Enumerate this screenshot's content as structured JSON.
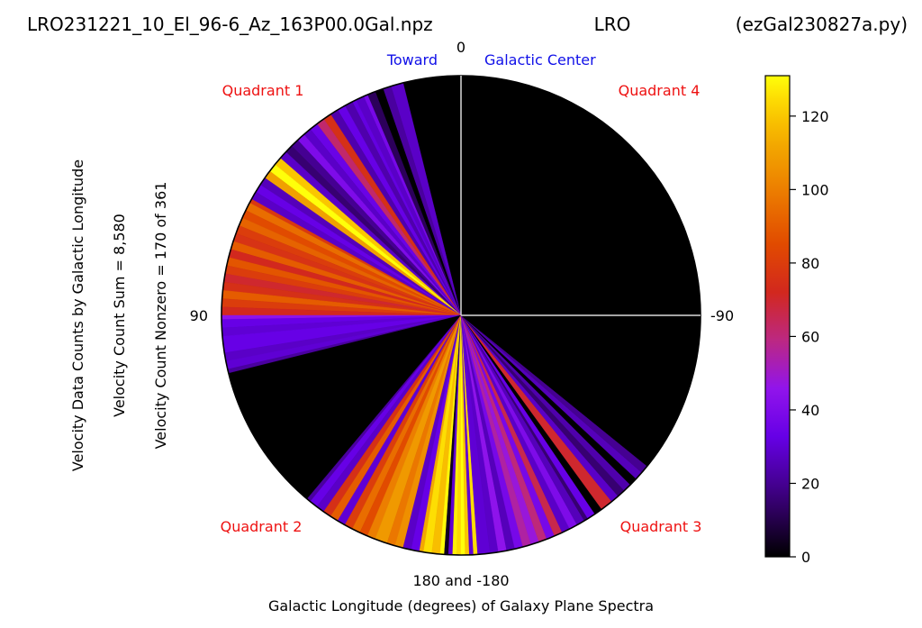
{
  "chart_data": {
    "type": "polar-wedge",
    "header_left": "LRO231221_10_El_96-6_Az_163P00.0Gal.npz",
    "header_center": "LRO",
    "header_right": "(ezGal230827a.py)",
    "toward_label": "Toward",
    "galactic_center_label": "Galactic Center",
    "top_tick": "0",
    "left_tick": "90",
    "right_tick": "-90",
    "bottom_tick": "180 and -180",
    "xlabel": "Galactic Longitude (degrees) of Galaxy Plane Spectra",
    "ylabel_lines": [
      "Velocity Data Counts by Galactic Longitude",
      "Velocity Count Sum = 8,580",
      "Velocity Count Nonzero = 170 of 361"
    ],
    "quadrant_labels": [
      "Quadrant 1",
      "Quadrant 4",
      "Quadrant 2",
      "Quadrant 3"
    ],
    "colorbar": {
      "min": 0,
      "max": 131,
      "ticks": [
        0,
        20,
        40,
        60,
        80,
        100,
        120
      ],
      "colormap": "gnuplot"
    },
    "wedges": [
      {
        "start": 3,
        "end": 14,
        "value": 0
      },
      {
        "start": 14,
        "end": 17,
        "value": 28
      },
      {
        "start": 17,
        "end": 19,
        "value": 22
      },
      {
        "start": 19,
        "end": 21,
        "value": 0
      },
      {
        "start": 21,
        "end": 23,
        "value": 12
      },
      {
        "start": 23,
        "end": 24,
        "value": 38
      },
      {
        "start": 24,
        "end": 26,
        "value": 28
      },
      {
        "start": 26,
        "end": 27,
        "value": 32
      },
      {
        "start": 27,
        "end": 29,
        "value": 24
      },
      {
        "start": 29,
        "end": 31,
        "value": 33
      },
      {
        "start": 31,
        "end": 33,
        "value": 24
      },
      {
        "start": 33,
        "end": 35,
        "value": 75
      },
      {
        "start": 35,
        "end": 37,
        "value": 62
      },
      {
        "start": 37,
        "end": 39,
        "value": 34
      },
      {
        "start": 39,
        "end": 41,
        "value": 28
      },
      {
        "start": 41,
        "end": 43,
        "value": 40
      },
      {
        "start": 43,
        "end": 45,
        "value": 20
      },
      {
        "start": 45,
        "end": 47,
        "value": 15
      },
      {
        "start": 47,
        "end": 49,
        "value": 28
      },
      {
        "start": 49,
        "end": 51,
        "value": 120
      },
      {
        "start": 51,
        "end": 53,
        "value": 131
      },
      {
        "start": 53,
        "end": 55,
        "value": 110
      },
      {
        "start": 55,
        "end": 57,
        "value": 26
      },
      {
        "start": 57,
        "end": 59,
        "value": 33
      },
      {
        "start": 59,
        "end": 61,
        "value": 28
      },
      {
        "start": 61,
        "end": 62,
        "value": 78
      },
      {
        "start": 62,
        "end": 64,
        "value": 95
      },
      {
        "start": 64,
        "end": 66,
        "value": 85
      },
      {
        "start": 66,
        "end": 68,
        "value": 92
      },
      {
        "start": 68,
        "end": 70,
        "value": 80
      },
      {
        "start": 70,
        "end": 72,
        "value": 76
      },
      {
        "start": 72,
        "end": 74,
        "value": 90
      },
      {
        "start": 74,
        "end": 76,
        "value": 72
      },
      {
        "start": 76,
        "end": 78,
        "value": 88
      },
      {
        "start": 78,
        "end": 80,
        "value": 80
      },
      {
        "start": 80,
        "end": 82,
        "value": 70
      },
      {
        "start": 82,
        "end": 84,
        "value": 75
      },
      {
        "start": 84,
        "end": 86,
        "value": 90
      },
      {
        "start": 86,
        "end": 88,
        "value": 80
      },
      {
        "start": 88,
        "end": 90,
        "value": 72
      },
      {
        "start": 90,
        "end": 91,
        "value": 45
      },
      {
        "start": 91,
        "end": 93,
        "value": 33
      },
      {
        "start": 93,
        "end": 95,
        "value": 30
      },
      {
        "start": 95,
        "end": 99,
        "value": 33
      },
      {
        "start": 99,
        "end": 101,
        "value": 28
      },
      {
        "start": 101,
        "end": 103,
        "value": 30
      },
      {
        "start": 103,
        "end": 104,
        "value": 22
      },
      {
        "start": 104,
        "end": 140,
        "value": 0
      },
      {
        "start": 140,
        "end": 141,
        "value": 22
      },
      {
        "start": 141,
        "end": 143,
        "value": 33
      },
      {
        "start": 143,
        "end": 145,
        "value": 28
      },
      {
        "start": 145,
        "end": 147,
        "value": 75
      },
      {
        "start": 147,
        "end": 149,
        "value": 90
      },
      {
        "start": 149,
        "end": 151,
        "value": 30
      },
      {
        "start": 151,
        "end": 153,
        "value": 80
      },
      {
        "start": 153,
        "end": 155,
        "value": 95
      },
      {
        "start": 155,
        "end": 157,
        "value": 85
      },
      {
        "start": 157,
        "end": 159,
        "value": 100
      },
      {
        "start": 159,
        "end": 162,
        "value": 108
      },
      {
        "start": 162,
        "end": 164,
        "value": 98
      },
      {
        "start": 164,
        "end": 166,
        "value": 105
      },
      {
        "start": 166,
        "end": 168,
        "value": 28
      },
      {
        "start": 168,
        "end": 170,
        "value": 33
      },
      {
        "start": 170,
        "end": 171,
        "value": 112
      },
      {
        "start": 171,
        "end": 173,
        "value": 125
      },
      {
        "start": 173,
        "end": 175,
        "value": 118
      },
      {
        "start": 175,
        "end": 176,
        "value": 130
      },
      {
        "start": 176,
        "end": 177,
        "value": 4
      },
      {
        "start": 177,
        "end": 178,
        "value": 30
      },
      {
        "start": 178,
        "end": 179,
        "value": 128
      },
      {
        "start": 179,
        "end": 180,
        "value": 124
      },
      {
        "start": 180,
        "end": 181,
        "value": 131
      },
      {
        "start": 181,
        "end": 182,
        "value": 120
      },
      {
        "start": 182,
        "end": 183,
        "value": 30
      },
      {
        "start": 183,
        "end": 184,
        "value": 125
      },
      {
        "start": 184,
        "end": 187,
        "value": 30
      },
      {
        "start": 187,
        "end": 189,
        "value": 28
      },
      {
        "start": 189,
        "end": 191,
        "value": 45
      },
      {
        "start": 191,
        "end": 193,
        "value": 26
      },
      {
        "start": 193,
        "end": 195,
        "value": 38
      },
      {
        "start": 195,
        "end": 197,
        "value": 55
      },
      {
        "start": 197,
        "end": 199,
        "value": 48
      },
      {
        "start": 199,
        "end": 201,
        "value": 60
      },
      {
        "start": 201,
        "end": 203,
        "value": 38
      },
      {
        "start": 203,
        "end": 205,
        "value": 66
      },
      {
        "start": 205,
        "end": 207,
        "value": 28
      },
      {
        "start": 207,
        "end": 209,
        "value": 40
      },
      {
        "start": 209,
        "end": 211,
        "value": 26
      },
      {
        "start": 211,
        "end": 212,
        "value": 15
      },
      {
        "start": 212,
        "end": 214,
        "value": 33
      },
      {
        "start": 214,
        "end": 216,
        "value": 0
      },
      {
        "start": 216,
        "end": 219,
        "value": 70
      },
      {
        "start": 219,
        "end": 221,
        "value": 28
      },
      {
        "start": 221,
        "end": 223,
        "value": 15
      },
      {
        "start": 223,
        "end": 225,
        "value": 24
      },
      {
        "start": 225,
        "end": 227,
        "value": 0
      },
      {
        "start": 227,
        "end": 229,
        "value": 26
      },
      {
        "start": 229,
        "end": 231,
        "value": 20
      },
      {
        "start": 231,
        "end": 357,
        "value": 0
      }
    ]
  }
}
